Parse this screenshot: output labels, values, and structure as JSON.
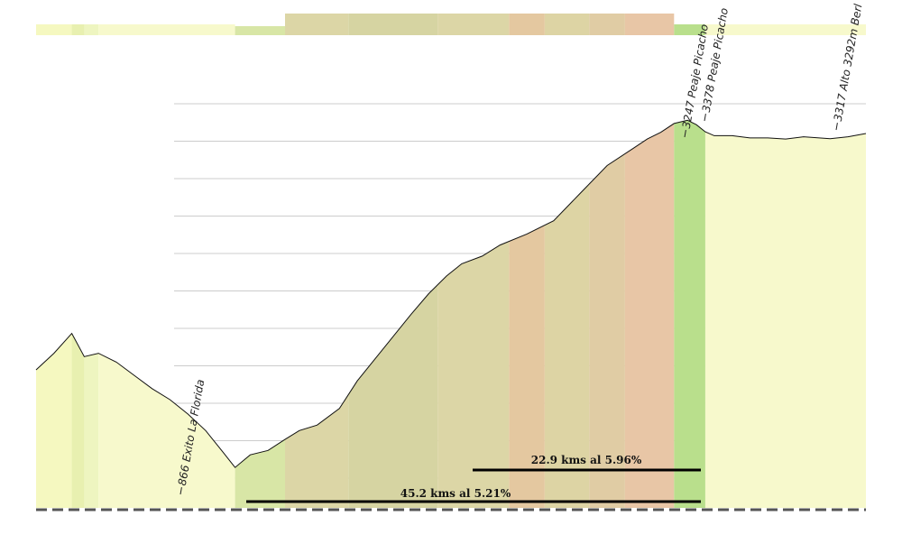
{
  "chart_data": {
    "type": "area",
    "title": "",
    "xlabel": "",
    "ylabel": "",
    "x": [
      0,
      2,
      4,
      5.4,
      7,
      9,
      11,
      13,
      15,
      17,
      19,
      21,
      22.3,
      24,
      26,
      27.9,
      29.5,
      31.5,
      34,
      36,
      38,
      40,
      42,
      44,
      46,
      47.7,
      50,
      52,
      55,
      58,
      61,
      64,
      67,
      68.5,
      70,
      71.5,
      73,
      74,
      75,
      76,
      78,
      80,
      82,
      84,
      86,
      89,
      91,
      93
    ],
    "y": [
      1750,
      1900,
      2080,
      1870,
      1900,
      1820,
      1700,
      1580,
      1480,
      1350,
      1200,
      1000,
      866,
      980,
      1020,
      1120,
      1200,
      1250,
      1400,
      1650,
      1850,
      2050,
      2250,
      2440,
      2600,
      2710,
      2780,
      2880,
      2980,
      3100,
      3350,
      3600,
      3760,
      3840,
      3900,
      3980,
      4010,
      3970,
      3905,
      3870,
      3870,
      3850,
      3850,
      3840,
      3860,
      3842,
      3860,
      3890
    ],
    "grid": true,
    "gradient_bands": {
      "colors": [
        "#f5f8c0",
        "#e8f0b0",
        "#d4e8a6",
        "#c9dea2",
        "#d8d6a2",
        "#e6c9a0",
        "#ecc0a8",
        "#b7df88"
      ],
      "segments": [
        {
          "x_start": 0,
          "x_end": 4,
          "color": "#f5f8c0"
        },
        {
          "x_start": 4,
          "x_end": 5.4,
          "color": "#e8f0b0"
        },
        {
          "x_start": 5.4,
          "x_end": 7,
          "color": "#eef5c0"
        },
        {
          "x_start": 7,
          "x_end": 22.3,
          "color": "#f7f9cc"
        },
        {
          "x_start": 22.3,
          "x_end": 27.9,
          "color": "#d8e6a6"
        },
        {
          "x_start": 27.9,
          "x_end": 35,
          "color": "#dcd6a6"
        },
        {
          "x_start": 35,
          "x_end": 45,
          "color": "#d6d4a2"
        },
        {
          "x_start": 45,
          "x_end": 53,
          "color": "#dcd6a6"
        },
        {
          "x_start": 53,
          "x_end": 57,
          "color": "#e4c8a0"
        },
        {
          "x_start": 57,
          "x_end": 62,
          "color": "#ddd4a4"
        },
        {
          "x_start": 62,
          "x_end": 66,
          "color": "#e0cca4"
        },
        {
          "x_start": 66,
          "x_end": 71.5,
          "color": "#e8c6a6"
        },
        {
          "x_start": 71.5,
          "x_end": 75,
          "color": "#b9df8c"
        },
        {
          "x_start": 75,
          "x_end": 93,
          "color": "#f7f9cc"
        }
      ]
    },
    "annotations": [
      {
        "text": "866 Exito La Florida"
      },
      {
        "text": "3247 Peaje Picacho"
      },
      {
        "text": "3378 Peaje Picacho"
      },
      {
        "text": "3317 Alto 3292m Berl"
      }
    ],
    "segments_labels": [
      {
        "text": "22.9 kms al 5.96%"
      },
      {
        "text": "45.2 kms al 5.21%"
      }
    ]
  }
}
